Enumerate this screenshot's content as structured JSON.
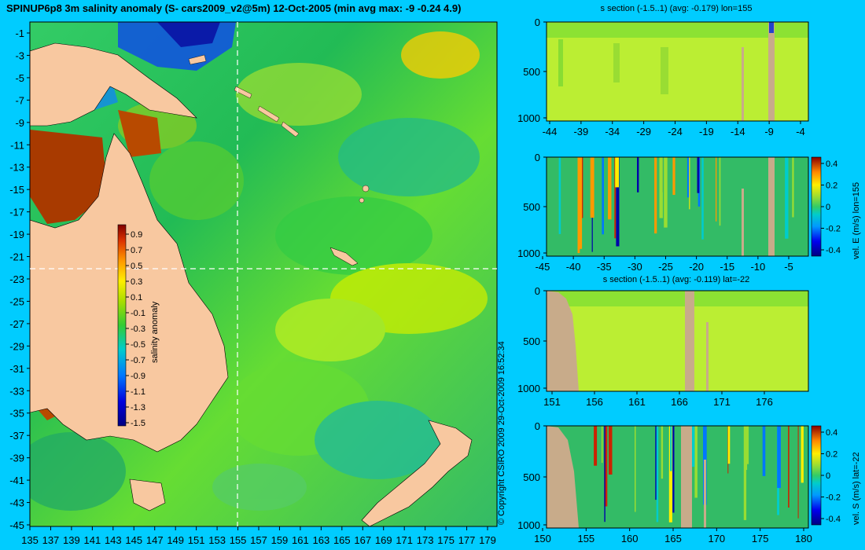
{
  "main_title": "SPINUP6p8 3m salinity anomaly (S- cars2009_v2@5m) 12-Oct-2005 (min avg max: -9 -0.24 4.9)",
  "copyright": "© Copyright CSIRO 2009   29-Oct-2009 16:52:34",
  "map": {
    "lat_labels": [
      "-1",
      "-3",
      "-5",
      "-7",
      "-9",
      "-11",
      "-13",
      "-15",
      "-17",
      "-19",
      "-21",
      "-23",
      "-25",
      "-27",
      "-29",
      "-31",
      "-33",
      "-35",
      "-37",
      "-39",
      "-41",
      "-43",
      "-45"
    ],
    "lon_labels": [
      "135",
      "137",
      "139",
      "141",
      "143",
      "145",
      "147",
      "149",
      "151",
      "153",
      "155",
      "157",
      "159",
      "161",
      "163",
      "165",
      "167",
      "169",
      "171",
      "173",
      "175",
      "177",
      "179"
    ],
    "section_lon": 155,
    "section_lat": -22,
    "colorbar": {
      "label": "salinity anomaly",
      "ticks": [
        "0.9",
        "0.7",
        "0.5",
        "0.3",
        "0.1",
        "-0.1",
        "-0.3",
        "-0.5",
        "-0.7",
        "-0.9",
        "-1.1",
        "-1.3",
        "-1.5"
      ]
    }
  },
  "panels": [
    {
      "title": "s section (-1.5..1) (avg: -0.179) lon=155",
      "y_ticks": [
        "0",
        "500",
        "1000"
      ],
      "x_ticks": [
        "-44",
        "-39",
        "-34",
        "-29",
        "-24",
        "-19",
        "-14",
        "-9",
        "-4"
      ]
    },
    {
      "title": "",
      "y_ticks": [
        "0",
        "500",
        "1000"
      ],
      "x_ticks": [
        "-45",
        "-40",
        "-35",
        "-30",
        "-25",
        "-20",
        "-15",
        "-10",
        "-5"
      ],
      "colorbar_label": "vel. E (m/s) lon=155",
      "colorbar_ticks": [
        "0.4",
        "0.2",
        "0",
        "-0.2",
        "-0.4"
      ]
    },
    {
      "title": "s section (-1.5..1) (avg: -0.119) lat=-22",
      "y_ticks": [
        "0",
        "500",
        "1000"
      ],
      "x_ticks": [
        "151",
        "156",
        "161",
        "166",
        "171",
        "176"
      ]
    },
    {
      "title": "",
      "y_ticks": [
        "0",
        "500",
        "1000"
      ],
      "x_ticks": [
        "150",
        "155",
        "160",
        "165",
        "170",
        "175",
        "180"
      ],
      "colorbar_label": "vel. S (m/s) lat=-22",
      "colorbar_ticks": [
        "0.4",
        "0.2",
        "0",
        "-0.2",
        "-0.4"
      ]
    }
  ]
}
